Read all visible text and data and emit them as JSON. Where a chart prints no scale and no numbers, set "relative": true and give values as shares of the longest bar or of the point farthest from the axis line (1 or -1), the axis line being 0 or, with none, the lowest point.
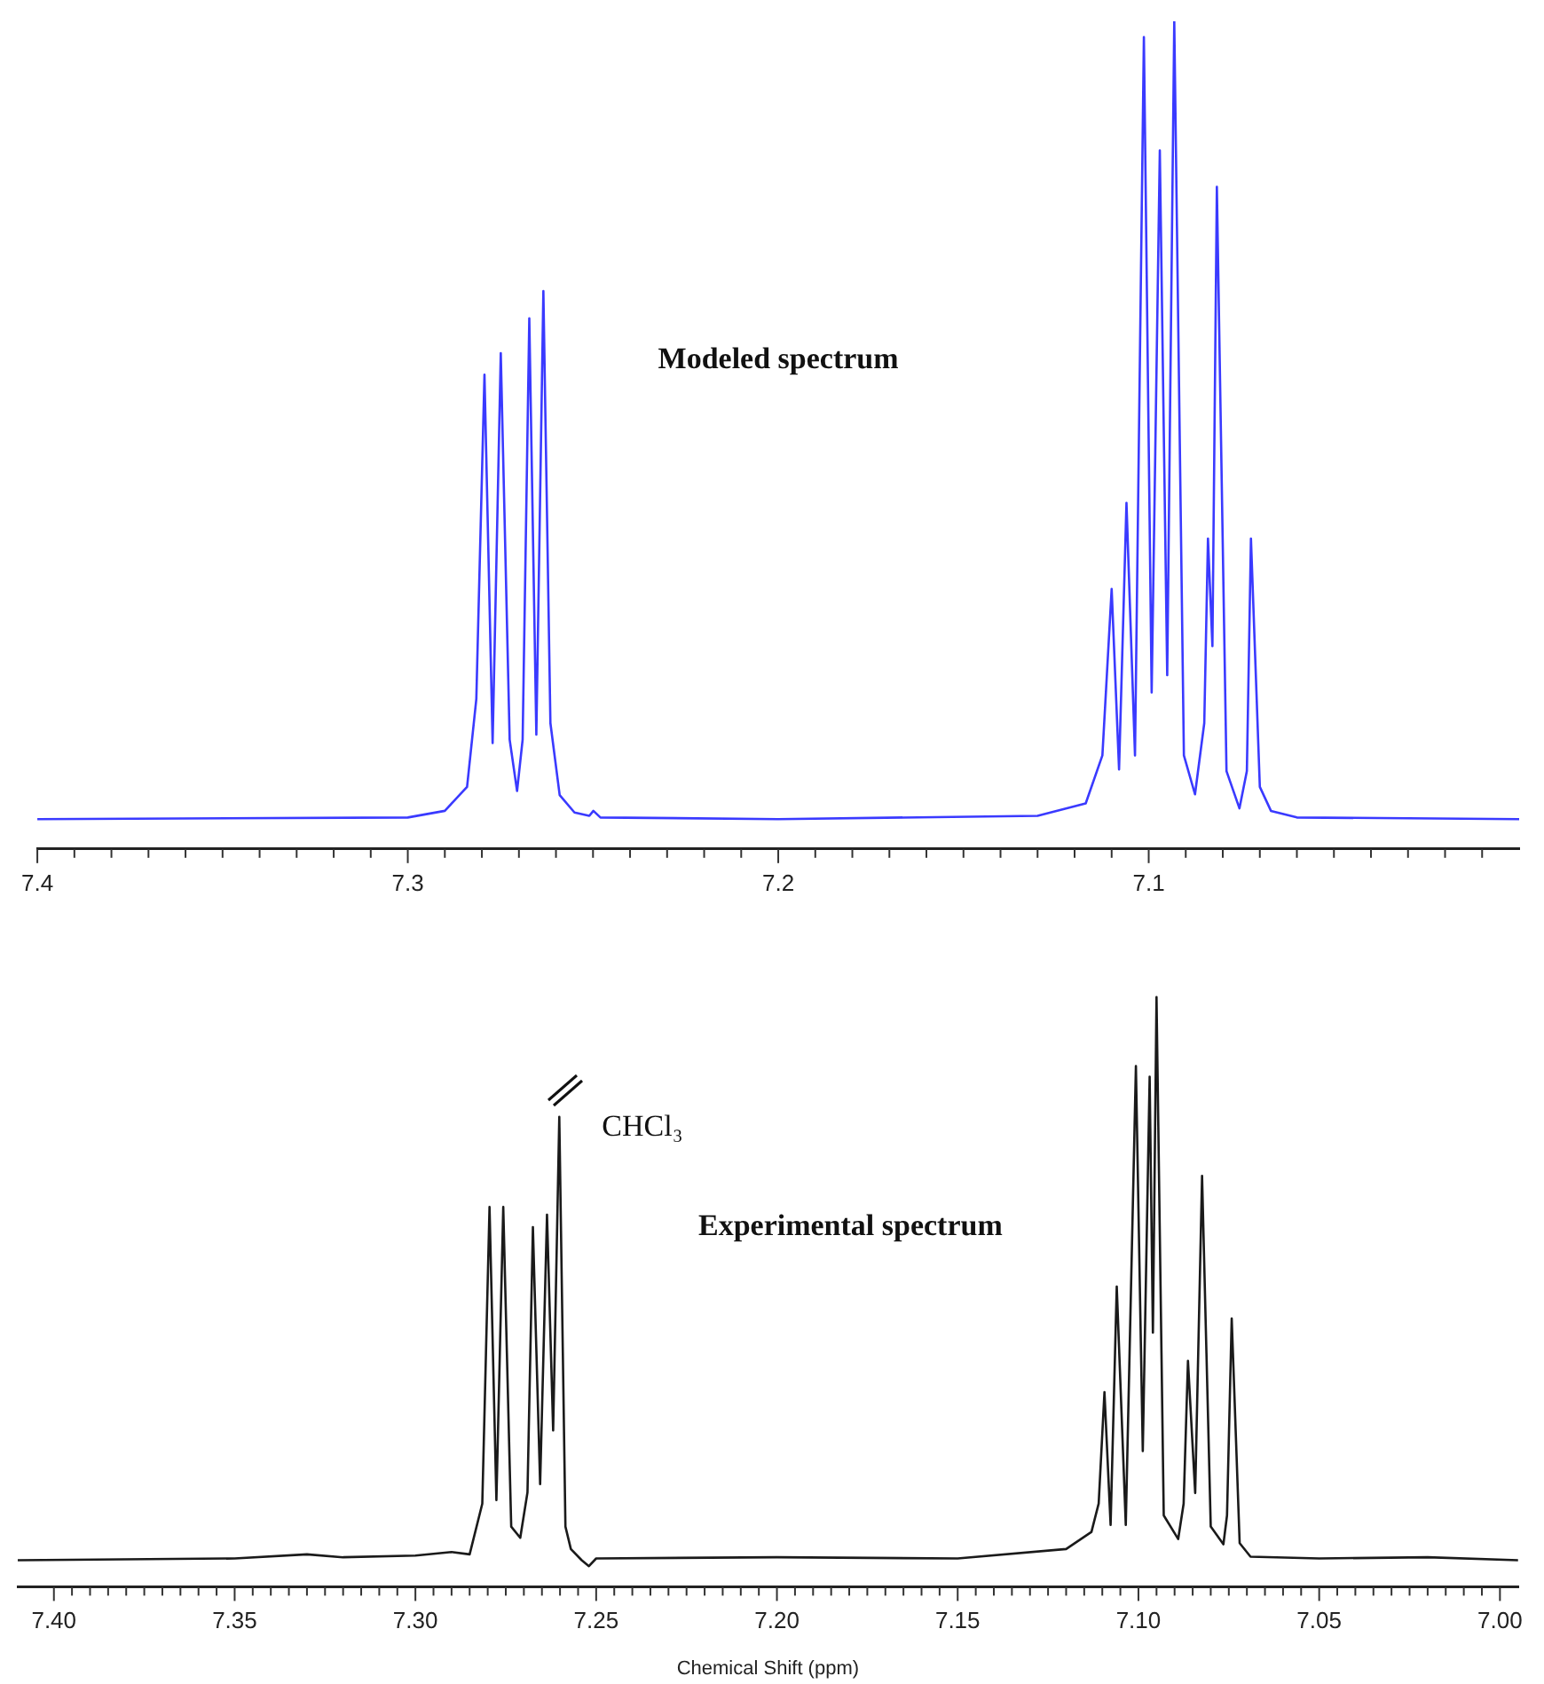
{
  "chart_data": [
    {
      "type": "line",
      "relative": true,
      "grid": false,
      "legend": false,
      "marker": "none",
      "line_style": "solid",
      "annotations": [
        "Modeled spectrum"
      ],
      "xlim": [
        7.4,
        7.0
      ],
      "xticks": [
        {
          "value": 7.4,
          "label": "7.4"
        },
        {
          "value": 7.39,
          "label": null
        },
        {
          "value": 7.38,
          "label": null
        },
        {
          "value": 7.37,
          "label": null
        },
        {
          "value": 7.36,
          "label": null
        },
        {
          "value": 7.35,
          "label": null
        },
        {
          "value": 7.34,
          "label": null
        },
        {
          "value": 7.33,
          "label": null
        },
        {
          "value": 7.32,
          "label": null
        },
        {
          "value": 7.31,
          "label": null
        },
        {
          "value": 7.3,
          "label": "7.3"
        },
        {
          "value": 7.29,
          "label": null
        },
        {
          "value": 7.28,
          "label": null
        },
        {
          "value": 7.27,
          "label": null
        },
        {
          "value": 7.26,
          "label": null
        },
        {
          "value": 7.25,
          "label": null
        },
        {
          "value": 7.24,
          "label": null
        },
        {
          "value": 7.23,
          "label": null
        },
        {
          "value": 7.22,
          "label": null
        },
        {
          "value": 7.21,
          "label": null
        },
        {
          "value": 7.2,
          "label": "7.2"
        },
        {
          "value": 7.19,
          "label": null
        },
        {
          "value": 7.18,
          "label": null
        },
        {
          "value": 7.17,
          "label": null
        },
        {
          "value": 7.16,
          "label": null
        },
        {
          "value": 7.15,
          "label": null
        },
        {
          "value": 7.14,
          "label": null
        },
        {
          "value": 7.13,
          "label": null
        },
        {
          "value": 7.12,
          "label": null
        },
        {
          "value": 7.11,
          "label": null
        },
        {
          "value": 7.1,
          "label": "7.1"
        },
        {
          "value": 7.09,
          "label": null
        },
        {
          "value": 7.08,
          "label": null
        },
        {
          "value": 7.07,
          "label": null
        },
        {
          "value": 7.06,
          "label": null
        },
        {
          "value": 7.05,
          "label": null
        },
        {
          "value": 7.04,
          "label": null
        },
        {
          "value": 7.03,
          "label": null
        },
        {
          "value": 7.02,
          "label": null
        },
        {
          "value": 7.01,
          "label": null
        }
      ],
      "series": [
        {
          "color": "#3a3aff",
          "x": [
            7.4,
            7.3,
            7.29,
            7.284,
            7.2815,
            7.2793,
            7.2771,
            7.2749,
            7.2725,
            7.2705,
            7.269,
            7.2672,
            7.2653,
            7.2634,
            7.2615,
            7.259,
            7.255,
            7.251,
            7.2499,
            7.248,
            7.2,
            7.13,
            7.117,
            7.1125,
            7.11,
            7.108,
            7.106,
            7.1037,
            7.1013,
            7.0992,
            7.097,
            7.095,
            7.0931,
            7.0905,
            7.0875,
            7.085,
            7.084,
            7.0828,
            7.0816,
            7.079,
            7.0755,
            7.0735,
            7.0724,
            7.07,
            7.067,
            7.06,
            7.0
          ],
          "values": [
            0.036,
            0.038,
            0.046,
            0.075,
            0.181,
            0.573,
            0.128,
            0.599,
            0.132,
            0.07,
            0.132,
            0.641,
            0.138,
            0.674,
            0.152,
            0.065,
            0.044,
            0.04,
            0.046,
            0.038,
            0.036,
            0.04,
            0.055,
            0.113,
            0.314,
            0.096,
            0.418,
            0.113,
            0.981,
            0.189,
            0.844,
            0.21,
            1.0,
            0.113,
            0.066,
            0.152,
            0.375,
            0.245,
            0.8,
            0.094,
            0.049,
            0.094,
            0.375,
            0.075,
            0.046,
            0.038,
            0.036
          ]
        }
      ]
    },
    {
      "type": "line",
      "relative": true,
      "grid": false,
      "legend": false,
      "marker": "none",
      "line_style": "solid",
      "xlabel": "Chemical Shift (ppm)",
      "annotations": [
        "Experimental spectrum",
        {
          "text": "CHCl₃",
          "x": 7.2602,
          "y": 0.797
        }
      ],
      "xlim": [
        7.41,
        6.995
      ],
      "xticks": [
        {
          "value": 7.4,
          "label": "7.40"
        },
        {
          "value": 7.395,
          "label": null
        },
        {
          "value": 7.39,
          "label": null
        },
        {
          "value": 7.385,
          "label": null
        },
        {
          "value": 7.38,
          "label": null
        },
        {
          "value": 7.375,
          "label": null
        },
        {
          "value": 7.37,
          "label": null
        },
        {
          "value": 7.365,
          "label": null
        },
        {
          "value": 7.36,
          "label": null
        },
        {
          "value": 7.355,
          "label": null
        },
        {
          "value": 7.35,
          "label": "7.35"
        },
        {
          "value": 7.345,
          "label": null
        },
        {
          "value": 7.34,
          "label": null
        },
        {
          "value": 7.335,
          "label": null
        },
        {
          "value": 7.33,
          "label": null
        },
        {
          "value": 7.325,
          "label": null
        },
        {
          "value": 7.32,
          "label": null
        },
        {
          "value": 7.315,
          "label": null
        },
        {
          "value": 7.31,
          "label": null
        },
        {
          "value": 7.305,
          "label": null
        },
        {
          "value": 7.3,
          "label": "7.30"
        },
        {
          "value": 7.295,
          "label": null
        },
        {
          "value": 7.29,
          "label": null
        },
        {
          "value": 7.285,
          "label": null
        },
        {
          "value": 7.28,
          "label": null
        },
        {
          "value": 7.275,
          "label": null
        },
        {
          "value": 7.27,
          "label": null
        },
        {
          "value": 7.265,
          "label": null
        },
        {
          "value": 7.26,
          "label": null
        },
        {
          "value": 7.255,
          "label": null
        },
        {
          "value": 7.25,
          "label": "7.25"
        },
        {
          "value": 7.245,
          "label": null
        },
        {
          "value": 7.24,
          "label": null
        },
        {
          "value": 7.235,
          "label": null
        },
        {
          "value": 7.23,
          "label": null
        },
        {
          "value": 7.225,
          "label": null
        },
        {
          "value": 7.22,
          "label": null
        },
        {
          "value": 7.215,
          "label": null
        },
        {
          "value": 7.21,
          "label": null
        },
        {
          "value": 7.205,
          "label": null
        },
        {
          "value": 7.2,
          "label": "7.20"
        },
        {
          "value": 7.195,
          "label": null
        },
        {
          "value": 7.19,
          "label": null
        },
        {
          "value": 7.185,
          "label": null
        },
        {
          "value": 7.18,
          "label": null
        },
        {
          "value": 7.175,
          "label": null
        },
        {
          "value": 7.17,
          "label": null
        },
        {
          "value": 7.165,
          "label": null
        },
        {
          "value": 7.16,
          "label": null
        },
        {
          "value": 7.155,
          "label": null
        },
        {
          "value": 7.15,
          "label": "7.15"
        },
        {
          "value": 7.145,
          "label": null
        },
        {
          "value": 7.14,
          "label": null
        },
        {
          "value": 7.135,
          "label": null
        },
        {
          "value": 7.13,
          "label": null
        },
        {
          "value": 7.125,
          "label": null
        },
        {
          "value": 7.12,
          "label": null
        },
        {
          "value": 7.115,
          "label": null
        },
        {
          "value": 7.11,
          "label": null
        },
        {
          "value": 7.105,
          "label": null
        },
        {
          "value": 7.1,
          "label": "7.10"
        },
        {
          "value": 7.095,
          "label": null
        },
        {
          "value": 7.09,
          "label": null
        },
        {
          "value": 7.085,
          "label": null
        },
        {
          "value": 7.08,
          "label": null
        },
        {
          "value": 7.075,
          "label": null
        },
        {
          "value": 7.07,
          "label": null
        },
        {
          "value": 7.065,
          "label": null
        },
        {
          "value": 7.06,
          "label": null
        },
        {
          "value": 7.055,
          "label": null
        },
        {
          "value": 7.05,
          "label": "7.05"
        },
        {
          "value": 7.045,
          "label": null
        },
        {
          "value": 7.04,
          "label": null
        },
        {
          "value": 7.035,
          "label": null
        },
        {
          "value": 7.03,
          "label": null
        },
        {
          "value": 7.025,
          "label": null
        },
        {
          "value": 7.02,
          "label": null
        },
        {
          "value": 7.015,
          "label": null
        },
        {
          "value": 7.01,
          "label": null
        },
        {
          "value": 7.005,
          "label": null
        },
        {
          "value": 7.0,
          "label": "7.00"
        }
      ],
      "series": [
        {
          "color": "#1a1a1a",
          "x": [
            7.41,
            7.35,
            7.33,
            7.32,
            7.3,
            7.29,
            7.285,
            7.2815,
            7.2795,
            7.2776,
            7.2757,
            7.2735,
            7.271,
            7.269,
            7.2675,
            7.2655,
            7.2636,
            7.2619,
            7.2602,
            7.2585,
            7.257,
            7.254,
            7.252,
            7.25,
            7.2,
            7.15,
            7.12,
            7.113,
            7.111,
            7.1094,
            7.1077,
            7.106,
            7.1035,
            7.1007,
            7.0988,
            7.0969,
            7.096,
            7.095,
            7.093,
            7.089,
            7.0875,
            7.0863,
            7.0843,
            7.0824,
            7.08,
            7.0765,
            7.0755,
            7.0742,
            7.072,
            7.069,
            7.05,
            7.02,
            6.995
          ],
          "values": [
            0.045,
            0.048,
            0.055,
            0.05,
            0.053,
            0.059,
            0.055,
            0.141,
            0.644,
            0.147,
            0.644,
            0.102,
            0.083,
            0.16,
            0.61,
            0.174,
            0.631,
            0.265,
            0.797,
            0.102,
            0.064,
            0.045,
            0.035,
            0.048,
            0.05,
            0.048,
            0.064,
            0.093,
            0.141,
            0.33,
            0.105,
            0.509,
            0.105,
            0.883,
            0.23,
            0.865,
            0.431,
            1.0,
            0.121,
            0.081,
            0.141,
            0.383,
            0.159,
            0.697,
            0.102,
            0.072,
            0.121,
            0.455,
            0.074,
            0.051,
            0.048,
            0.05,
            0.045
          ]
        }
      ]
    }
  ]
}
